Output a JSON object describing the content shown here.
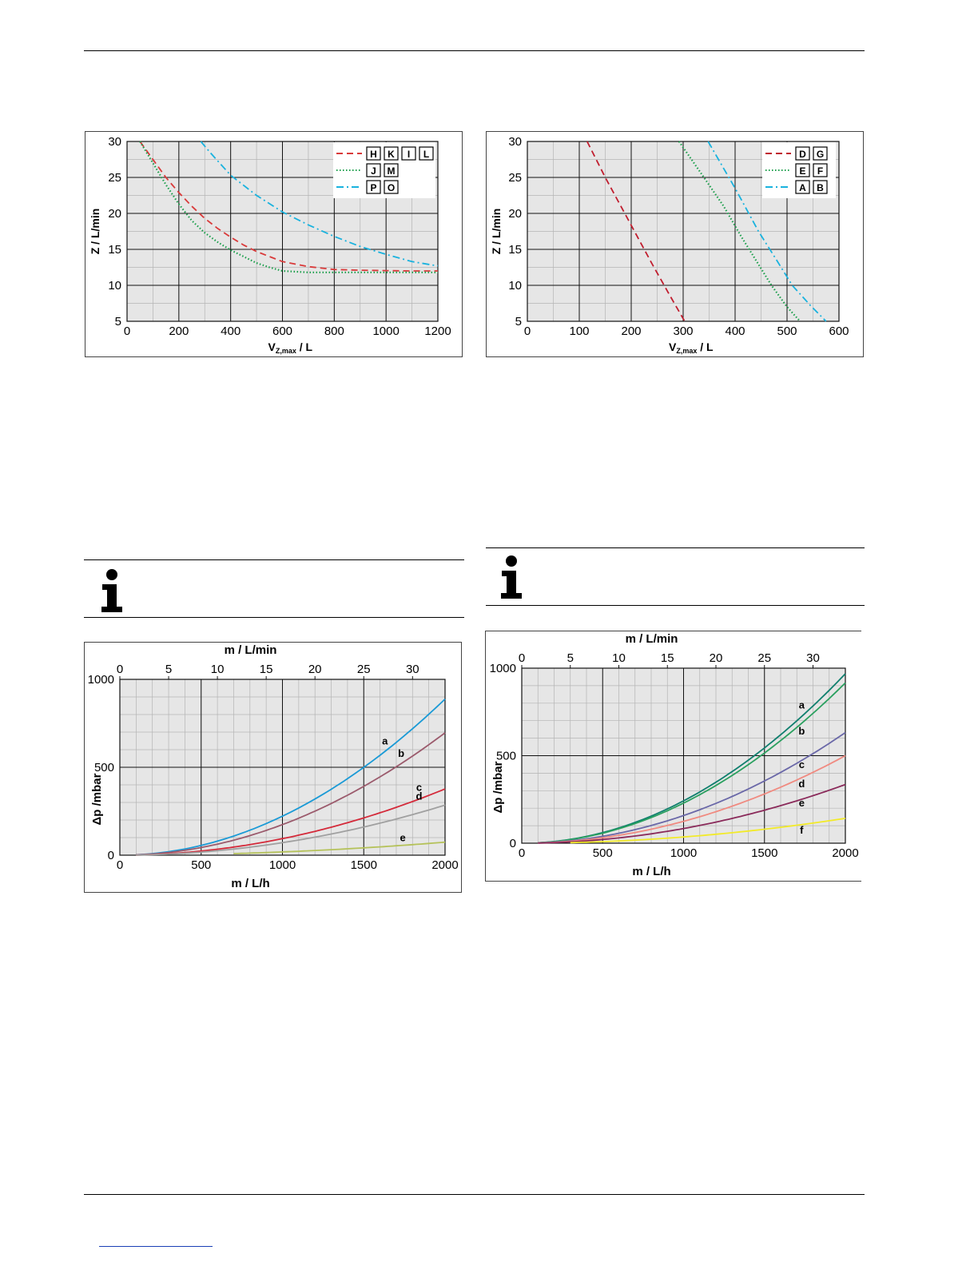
{
  "charts": [
    {
      "id": "c1",
      "type": "line",
      "xaxis": {
        "min": 0,
        "max": 1200,
        "ticks": [
          0,
          200,
          400,
          600,
          800,
          1000,
          1200
        ],
        "minor": 100
      },
      "yaxis": {
        "min": 5,
        "max": 30,
        "ticks": [
          5,
          10,
          15,
          20,
          25,
          30
        ],
        "minor": 2.5
      },
      "ylabel_main": "Z /   L/min",
      "xlabel_main": "V",
      "xlabel_sub": "Z,max",
      "xlabel_unit": "  / L",
      "legend": [
        {
          "style": "dash",
          "color": "#d93a3a",
          "boxes": [
            "H",
            "K",
            "I",
            "L"
          ]
        },
        {
          "style": "dot",
          "color": "#1a9e4a",
          "boxes": [
            "J",
            "M"
          ]
        },
        {
          "style": "dashdot",
          "color": "#19b2de",
          "boxes": [
            "P",
            "O"
          ]
        }
      ],
      "series": [
        {
          "style": "dash",
          "color": "#d93a3a",
          "points": [
            [
              50,
              30
            ],
            [
              100,
              27.5
            ],
            [
              150,
              25
            ],
            [
              200,
              22.9
            ],
            [
              250,
              21
            ],
            [
              300,
              19.3
            ],
            [
              350,
              17.9
            ],
            [
              400,
              16.7
            ],
            [
              450,
              15.6
            ],
            [
              500,
              14.7
            ],
            [
              600,
              13.3
            ],
            [
              700,
              12.6
            ],
            [
              800,
              12.2
            ],
            [
              900,
              12.1
            ],
            [
              1000,
              12.05
            ],
            [
              1100,
              12
            ],
            [
              1200,
              12
            ]
          ]
        },
        {
          "style": "dot",
          "color": "#1a9e4a",
          "points": [
            [
              50,
              30
            ],
            [
              100,
              27
            ],
            [
              150,
              24
            ],
            [
              200,
              21.3
            ],
            [
              250,
              19
            ],
            [
              300,
              17.3
            ],
            [
              350,
              16
            ],
            [
              400,
              14.9
            ],
            [
              450,
              14
            ],
            [
              500,
              13.1
            ],
            [
              550,
              12.5
            ],
            [
              600,
              12
            ],
            [
              700,
              11.8
            ],
            [
              800,
              11.8
            ],
            [
              900,
              11.8
            ],
            [
              1000,
              11.8
            ],
            [
              1100,
              11.8
            ],
            [
              1200,
              11.8
            ]
          ]
        },
        {
          "style": "dashdot",
          "color": "#19b2de",
          "points": [
            [
              285,
              30
            ],
            [
              320,
              28.5
            ],
            [
              400,
              25.3
            ],
            [
              500,
              22.5
            ],
            [
              600,
              20.2
            ],
            [
              700,
              18.4
            ],
            [
              800,
              16.8
            ],
            [
              900,
              15.4
            ],
            [
              1000,
              14.3
            ],
            [
              1100,
              13.3
            ],
            [
              1200,
              12.7
            ]
          ]
        }
      ]
    },
    {
      "id": "c2",
      "type": "line",
      "xaxis": {
        "min": 0,
        "max": 600,
        "ticks": [
          0,
          100,
          200,
          300,
          400,
          500,
          600
        ],
        "minor": 50
      },
      "yaxis": {
        "min": 5,
        "max": 30,
        "ticks": [
          5,
          10,
          15,
          20,
          25,
          30
        ],
        "minor": 2.5
      },
      "ylabel_main": "Z /   L/min",
      "xlabel_main": "V",
      "xlabel_sub": "Z,max",
      "xlabel_unit": "  / L",
      "legend": [
        {
          "style": "dash",
          "color": "#c01d2e",
          "boxes": [
            "D",
            "G"
          ]
        },
        {
          "style": "dot",
          "color": "#1a9e4a",
          "boxes": [
            "E",
            "F"
          ]
        },
        {
          "style": "dashdot",
          "color": "#19b2de",
          "boxes": [
            "A",
            "B"
          ]
        }
      ],
      "series": [
        {
          "style": "dash",
          "color": "#c01d2e",
          "points": [
            [
              115,
              30
            ],
            [
              150,
              25
            ],
            [
              195,
              19
            ],
            [
              240,
              13
            ],
            [
              275,
              8.5
            ],
            [
              303,
              5
            ]
          ]
        },
        {
          "style": "dot",
          "color": "#1a9e4a",
          "points": [
            [
              292,
              30
            ],
            [
              340,
              25
            ],
            [
              378,
              21
            ],
            [
              410,
              17
            ],
            [
              440,
              13.5
            ],
            [
              470,
              10
            ],
            [
              500,
              7
            ],
            [
              525,
              5
            ]
          ]
        },
        {
          "style": "dashdot",
          "color": "#19b2de",
          "points": [
            [
              348,
              30
            ],
            [
              400,
              23.5
            ],
            [
              445,
              17.5
            ],
            [
              480,
              13.5
            ],
            [
              510,
              10
            ],
            [
              545,
              7.2
            ],
            [
              575,
              5
            ]
          ]
        }
      ]
    },
    {
      "id": "c3",
      "type": "line",
      "xaxis": {
        "min": 0,
        "max": 2000,
        "ticks": [
          0,
          500,
          1000,
          1500,
          2000
        ],
        "minor": 100
      },
      "yaxis": {
        "min": 0,
        "max": 1000,
        "ticks": [
          0,
          500,
          1000
        ],
        "minor": 100
      },
      "top_axis": {
        "ticks": [
          0,
          5,
          10,
          15,
          20,
          25,
          30
        ],
        "factor": 60
      },
      "top_label": "m /   L/min",
      "xlabel": "m /   L/h",
      "ylabel": "Δp /mbar",
      "series": [
        {
          "name": "a",
          "color": "#1a9ad6",
          "k": 0.000222,
          "n": 2.0,
          "label_at": [
            1630,
            630
          ]
        },
        {
          "name": "b",
          "color": "#9b5a6c",
          "k": 0.000174,
          "n": 2.0,
          "label_at": [
            1730,
            560
          ]
        },
        {
          "name": "c",
          "color": "#d42a3a",
          "k": 9.42e-05,
          "n": 2.0,
          "label_at": [
            1840,
            365
          ]
        },
        {
          "name": "d",
          "color": "#a0a0a0",
          "k": 7.12e-05,
          "n": 2.0,
          "label_at": [
            1840,
            315
          ]
        },
        {
          "name": "e",
          "color": "#b5c25a",
          "k": 1.85e-05,
          "n": 2.0,
          "label_at": [
            1740,
            80
          ],
          "start": 700
        }
      ],
      "series_labels": [
        "a",
        "b",
        "c",
        "d",
        "e"
      ]
    },
    {
      "id": "c4",
      "type": "line",
      "xaxis": {
        "min": 0,
        "max": 2000,
        "ticks": [
          0,
          500,
          1000,
          1500,
          2000
        ],
        "minor": 100
      },
      "yaxis": {
        "min": 0,
        "max": 1000,
        "ticks": [
          0,
          500,
          1000
        ],
        "minor": 100
      },
      "top_axis": {
        "ticks": [
          0,
          5,
          10,
          15,
          20,
          25,
          30
        ],
        "factor": 60
      },
      "top_label": "m /   L/min",
      "xlabel": "m /   L/h",
      "ylabel": "Δp /mbar",
      "series": [
        {
          "name": "a",
          "color": "#0f7f6e",
          "k": 0.000242,
          "n": 2.0,
          "label_at": [
            1730,
            770
          ]
        },
        {
          "name": "b",
          "color": "#2aa05f",
          "k": 0.000229,
          "n": 2.0,
          "label_at": [
            1730,
            620
          ]
        },
        {
          "name": "c",
          "color": "#6a68a8",
          "k": 0.000158,
          "n": 2.0,
          "label_at": [
            1730,
            430
          ]
        },
        {
          "name": "d",
          "color": "#f08a80",
          "k": 0.000125,
          "n": 2.0,
          "label_at": [
            1730,
            320
          ]
        },
        {
          "name": "e",
          "color": "#8a2a5a",
          "k": 8.38e-05,
          "n": 2.0,
          "label_at": [
            1730,
            210
          ]
        },
        {
          "name": "f",
          "color": "#f2ea2a",
          "k": 3.55e-05,
          "n": 2.0,
          "label_at": [
            1730,
            55
          ],
          "start": 300
        }
      ],
      "series_labels": [
        "a",
        "b",
        "c",
        "d",
        "e",
        "f"
      ]
    }
  ]
}
